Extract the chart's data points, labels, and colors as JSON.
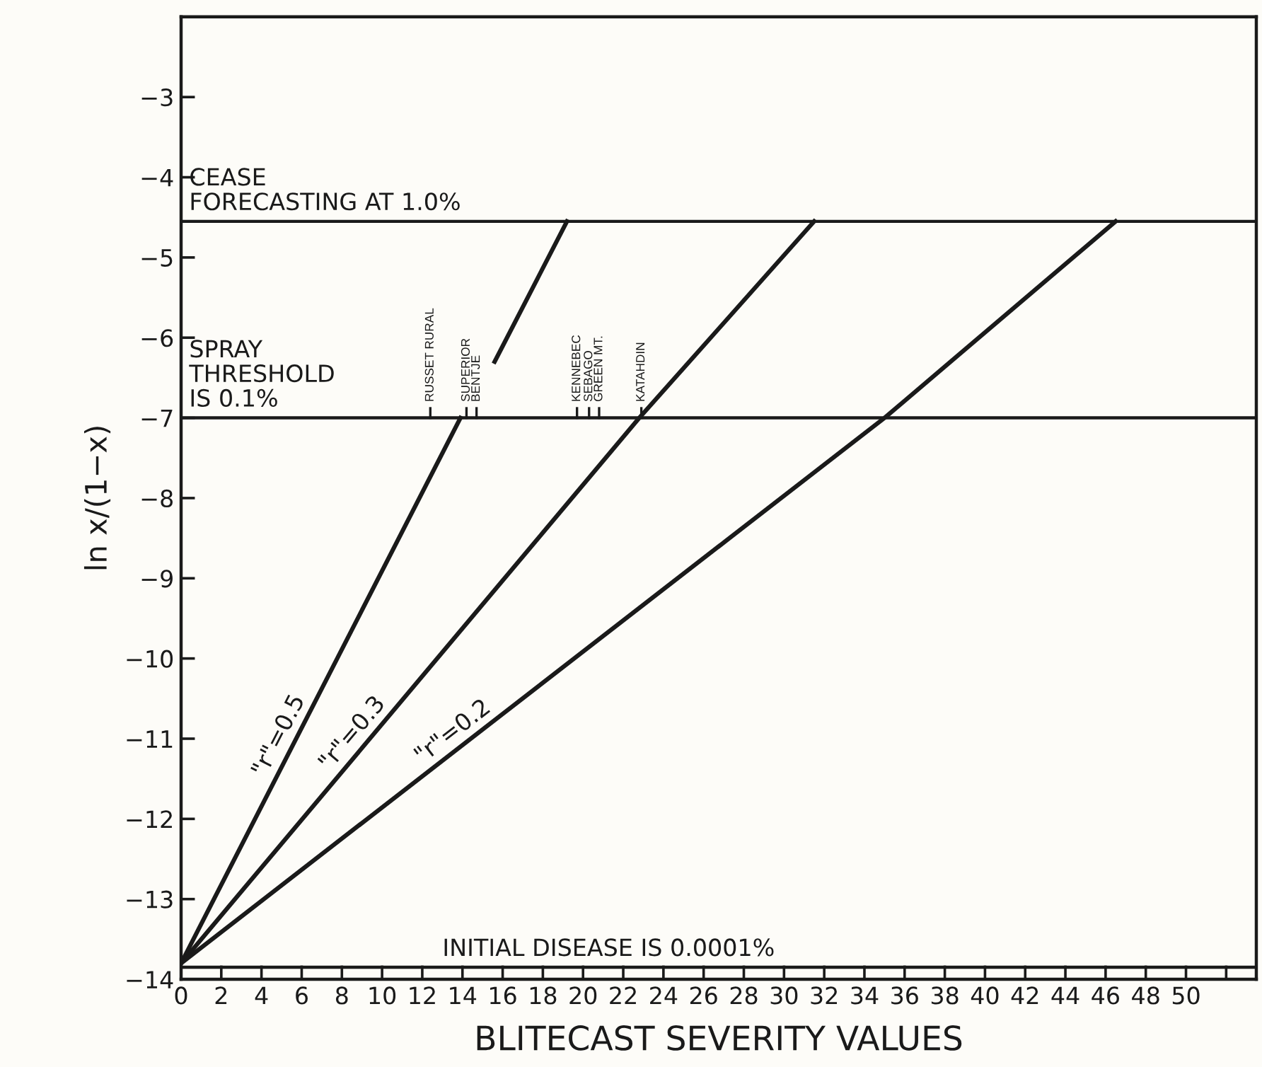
{
  "chart_data": {
    "type": "line",
    "xlabel": "BLITECAST SEVERITY VALUES",
    "ylabel": "ln x/(1−x)",
    "xlim": [
      0,
      53.5
    ],
    "ylim": [
      -14,
      -2
    ],
    "xticks": [
      0,
      2,
      4,
      6,
      8,
      10,
      12,
      14,
      16,
      18,
      20,
      22,
      24,
      26,
      28,
      30,
      32,
      34,
      36,
      38,
      40,
      42,
      44,
      46,
      48,
      50,
      {
        "value": 52,
        "label": null
      }
    ],
    "yticks": [
      -3,
      -4,
      -5,
      -6,
      -7,
      -8,
      -9,
      -10,
      -11,
      -12,
      -13,
      -14
    ],
    "grid": false,
    "marker": "none",
    "line_style": "solid",
    "series": [
      {
        "name": "\"r\"=0.5",
        "color": "#1a1a1a",
        "x": [
          0,
          13.9,
          14.8,
          15.6,
          19.2
        ],
        "values": [
          -13.8,
          -7.0,
          null,
          -6.3,
          -4.55
        ]
      },
      {
        "name": "\"r\"=0.3",
        "color": "#1a1a1a",
        "x": [
          0,
          22.8,
          31.5
        ],
        "values": [
          -13.8,
          -7.0,
          -4.55
        ]
      },
      {
        "name": "\"r\"=0.2",
        "color": "#1a1a1a",
        "x": [
          0,
          35,
          46.5
        ],
        "values": [
          -13.8,
          -7.0,
          -4.55
        ]
      }
    ],
    "ref_lines": [
      {
        "axis": "y",
        "value": -4.55,
        "label": "CEASE\nFORECASTING AT 1.0%",
        "color": "#1a1a1a"
      },
      {
        "axis": "y",
        "value": -7.0,
        "label": "SPRAY\nTHRESHOLD\nIS 0.1%",
        "color": "#1a1a1a"
      },
      {
        "axis": "y",
        "value": -13.85,
        "label": "INITIAL DISEASE IS 0.0001%",
        "color": "#1a1a1a"
      }
    ],
    "annotations": [
      {
        "text": "RUSSET RURAL",
        "x": 12.4,
        "y": -7.0
      },
      {
        "text": "SUPERIOR",
        "x": 14.2,
        "y": -7.0
      },
      {
        "text": "BENTJE",
        "x": 14.7,
        "y": -7.0
      },
      {
        "text": "KENNEBEC",
        "x": 19.7,
        "y": -7.0
      },
      {
        "text": "SEBAGO",
        "x": 20.3,
        "y": -7.0
      },
      {
        "text": "GREEN MT.",
        "x": 20.8,
        "y": -7.0
      },
      {
        "text": "KATAHDIN",
        "x": 22.9,
        "y": -7.0
      }
    ]
  }
}
